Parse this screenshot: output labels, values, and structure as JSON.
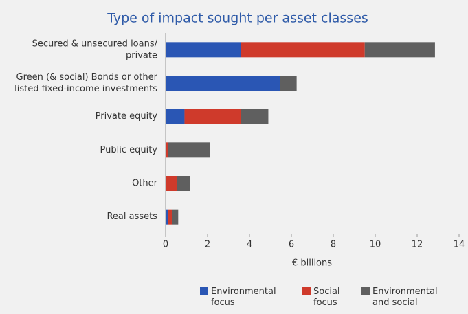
{
  "chart_data": {
    "type": "hbar_stacked",
    "title": "Type of impact sought per asset classes",
    "categories": [
      [
        "Secured & unsecured loans/",
        "private"
      ],
      [
        "Green (& social) Bonds or other",
        "listed fixed-income investments"
      ],
      [
        "Private equity"
      ],
      [
        "Public equity"
      ],
      [
        "Other"
      ],
      [
        "Real assets"
      ]
    ],
    "series": [
      {
        "name": "Environmental focus",
        "color": "#2a56b4",
        "values": [
          3.6,
          5.45,
          0.9,
          0,
          0,
          0.1
        ]
      },
      {
        "name": "Social focus",
        "color": "#cf3a2b",
        "values": [
          5.9,
          0,
          2.7,
          0.1,
          0.55,
          0.2
        ]
      },
      {
        "name": "Environmental and social",
        "color": "#5f5f5f",
        "values": [
          3.35,
          0.8,
          1.3,
          2.0,
          0.6,
          0.3
        ]
      }
    ],
    "xlabel": "€ billions",
    "xlim": [
      0,
      14
    ],
    "xticks": [
      0,
      2,
      4,
      6,
      8,
      10,
      12,
      14
    ]
  }
}
